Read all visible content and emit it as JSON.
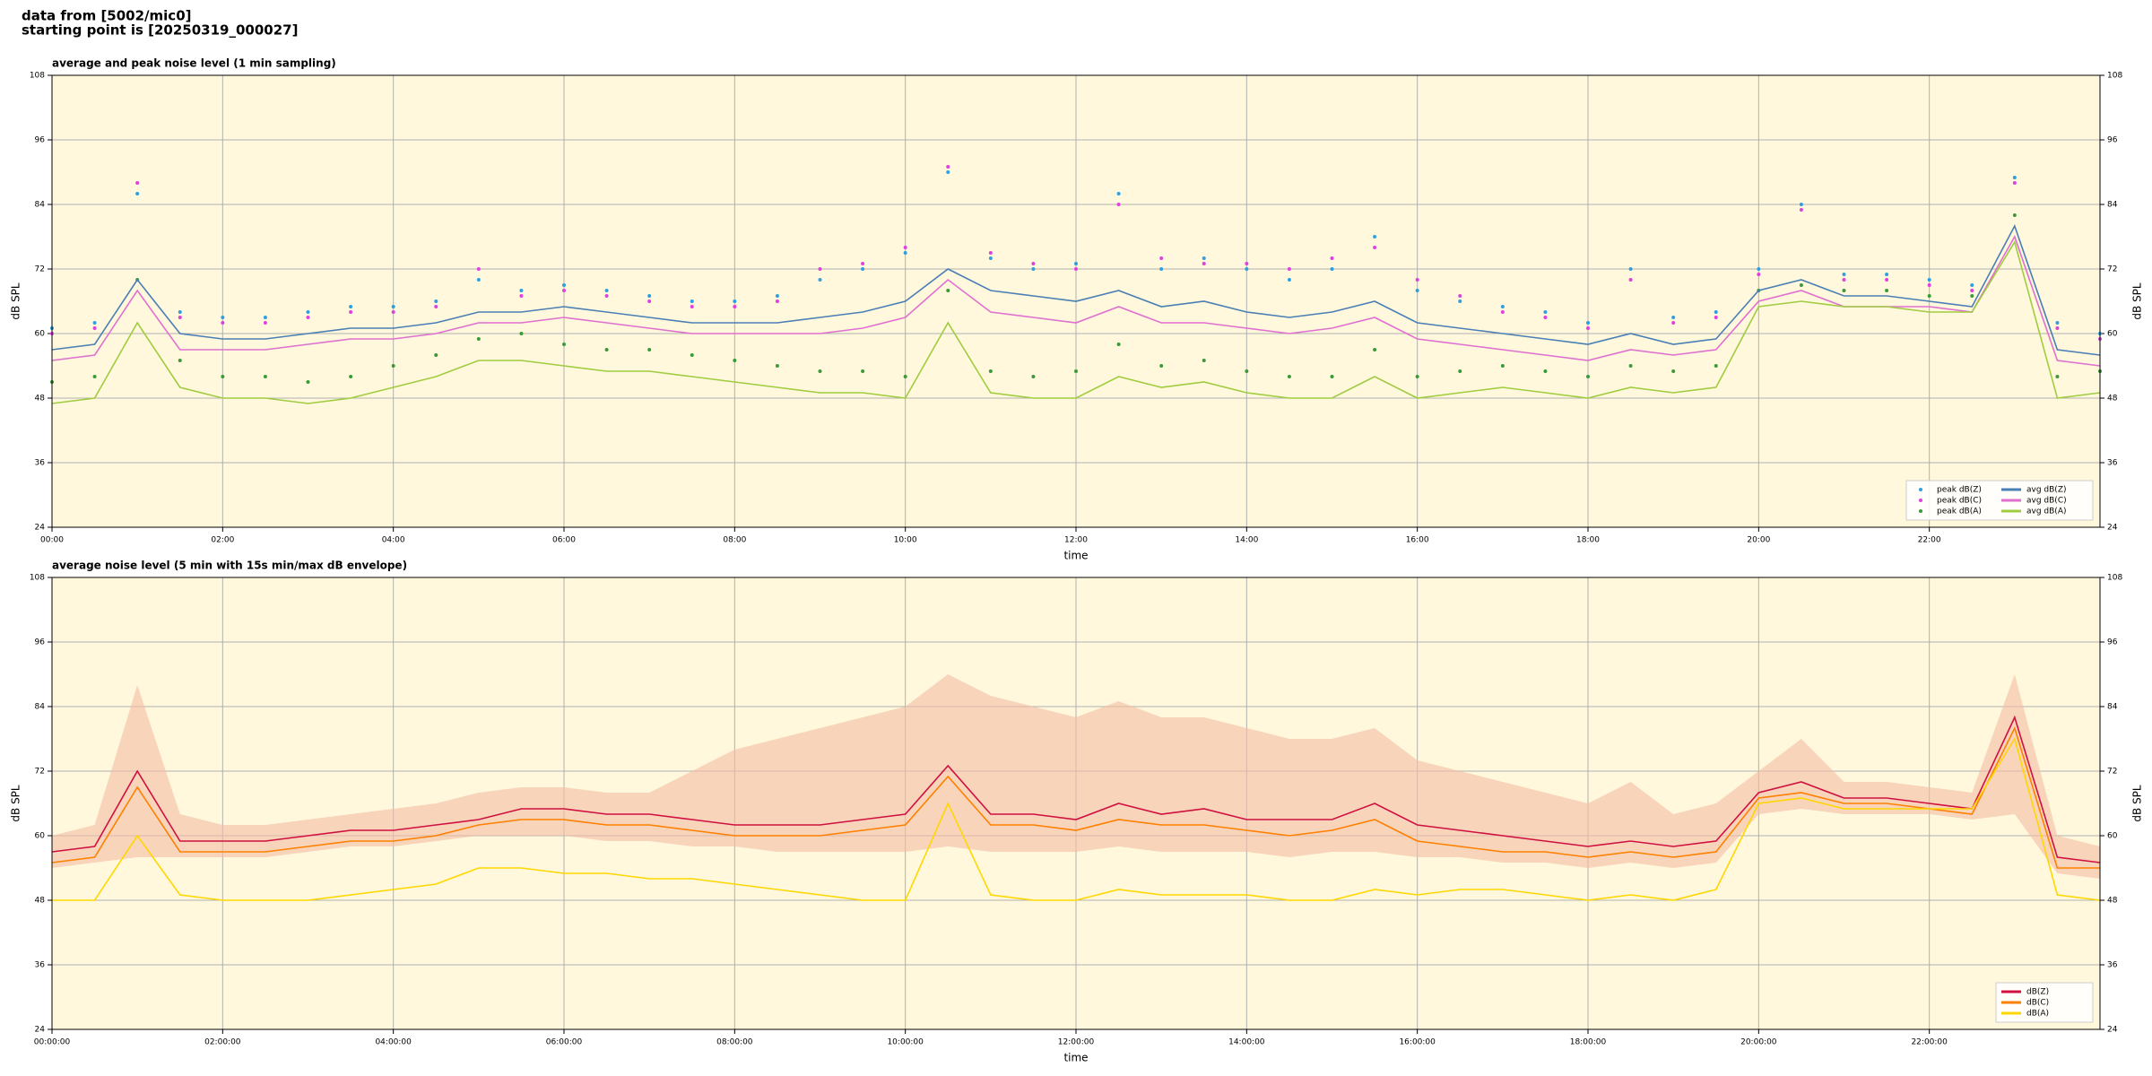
{
  "header": {
    "line1": "data from [5002/mic0]",
    "line2": "starting point is [20250319_000027]"
  },
  "chart_data": [
    {
      "type": "line",
      "title": "average and peak noise level (1 min sampling)",
      "xlabel": "time",
      "ylabel": "dB SPL",
      "background": "#fff8dc",
      "grid": true,
      "legend": "lower right",
      "xlim": [
        0,
        24
      ],
      "xticks": [
        {
          "value": 0,
          "label": "00:00"
        },
        {
          "value": 2,
          "label": "02:00"
        },
        {
          "value": 4,
          "label": "04:00"
        },
        {
          "value": 6,
          "label": "06:00"
        },
        {
          "value": 8,
          "label": "08:00"
        },
        {
          "value": 10,
          "label": "10:00"
        },
        {
          "value": 12,
          "label": "12:00"
        },
        {
          "value": 14,
          "label": "14:00"
        },
        {
          "value": 16,
          "label": "16:00"
        },
        {
          "value": 18,
          "label": "18:00"
        },
        {
          "value": 20,
          "label": "20:00"
        },
        {
          "value": 22,
          "label": "22:00"
        }
      ],
      "ylim": [
        24,
        108
      ],
      "yticks": [
        24,
        36,
        48,
        60,
        72,
        84,
        96,
        108
      ],
      "x": [
        0,
        0.5,
        1,
        1.5,
        2,
        2.5,
        3,
        3.5,
        4,
        4.5,
        5,
        5.5,
        6,
        6.5,
        7,
        7.5,
        8,
        8.5,
        9,
        9.5,
        10,
        10.5,
        11,
        11.5,
        12,
        12.5,
        13,
        13.5,
        14,
        14.5,
        15,
        15.5,
        16,
        16.5,
        17,
        17.5,
        18,
        18.5,
        19,
        19.5,
        20,
        20.5,
        21,
        21.5,
        22,
        22.5,
        23,
        23.5,
        24
      ],
      "series": [
        {
          "name": "peak dB(Z)",
          "style": "markers",
          "color": "#2f9fe0",
          "values": [
            61,
            62,
            86,
            64,
            63,
            63,
            64,
            65,
            65,
            66,
            70,
            68,
            69,
            68,
            67,
            66,
            66,
            67,
            70,
            72,
            75,
            90,
            74,
            72,
            73,
            86,
            72,
            74,
            72,
            70,
            72,
            78,
            68,
            66,
            65,
            64,
            62,
            72,
            63,
            64,
            72,
            84,
            71,
            71,
            70,
            69,
            89,
            62,
            60
          ]
        },
        {
          "name": "peak dB(C)",
          "style": "markers",
          "color": "#e040e0",
          "values": [
            60,
            61,
            88,
            63,
            62,
            62,
            63,
            64,
            64,
            65,
            72,
            67,
            68,
            67,
            66,
            65,
            65,
            66,
            72,
            73,
            76,
            91,
            75,
            73,
            72,
            84,
            74,
            73,
            73,
            72,
            74,
            76,
            70,
            67,
            64,
            63,
            61,
            70,
            62,
            63,
            71,
            83,
            70,
            70,
            69,
            68,
            88,
            61,
            59
          ]
        },
        {
          "name": "peak dB(A)",
          "style": "markers",
          "color": "#3a9a3a",
          "values": [
            51,
            52,
            70,
            55,
            52,
            52,
            51,
            52,
            54,
            56,
            59,
            60,
            58,
            57,
            57,
            56,
            55,
            54,
            53,
            53,
            52,
            68,
            53,
            52,
            53,
            58,
            54,
            55,
            53,
            52,
            52,
            57,
            52,
            53,
            54,
            53,
            52,
            54,
            53,
            54,
            68,
            69,
            68,
            68,
            67,
            67,
            82,
            52,
            53
          ]
        },
        {
          "name": "avg dB(Z)",
          "style": "line",
          "color": "#4a7fb5",
          "values": [
            57,
            58,
            70,
            60,
            59,
            59,
            60,
            61,
            61,
            62,
            64,
            64,
            65,
            64,
            63,
            62,
            62,
            62,
            63,
            64,
            66,
            72,
            68,
            67,
            66,
            68,
            65,
            66,
            64,
            63,
            64,
            66,
            62,
            61,
            60,
            59,
            58,
            60,
            58,
            59,
            68,
            70,
            67,
            67,
            66,
            65,
            80,
            57,
            56
          ]
        },
        {
          "name": "avg dB(C)",
          "style": "line",
          "color": "#e070d0",
          "values": [
            55,
            56,
            68,
            57,
            57,
            57,
            58,
            59,
            59,
            60,
            62,
            62,
            63,
            62,
            61,
            60,
            60,
            60,
            60,
            61,
            63,
            70,
            64,
            63,
            62,
            65,
            62,
            62,
            61,
            60,
            61,
            63,
            59,
            58,
            57,
            56,
            55,
            57,
            56,
            57,
            66,
            68,
            65,
            65,
            65,
            64,
            78,
            55,
            54
          ]
        },
        {
          "name": "avg dB(A)",
          "style": "line",
          "color": "#a0cc40",
          "values": [
            47,
            48,
            62,
            50,
            48,
            48,
            47,
            48,
            50,
            52,
            55,
            55,
            54,
            53,
            53,
            52,
            51,
            50,
            49,
            49,
            48,
            62,
            49,
            48,
            48,
            52,
            50,
            51,
            49,
            48,
            48,
            52,
            48,
            49,
            50,
            49,
            48,
            50,
            49,
            50,
            65,
            66,
            65,
            65,
            64,
            64,
            77,
            48,
            49
          ]
        }
      ]
    },
    {
      "type": "line",
      "title": "average noise level (5 min with 15s min/max dB envelope)",
      "xlabel": "time",
      "ylabel": "dB SPL",
      "background": "#fff8dc",
      "grid": true,
      "legend": "lower right",
      "xlim": [
        0,
        24
      ],
      "xticks": [
        {
          "value": 0,
          "label": "00:00:00"
        },
        {
          "value": 2,
          "label": "02:00:00"
        },
        {
          "value": 4,
          "label": "04:00:00"
        },
        {
          "value": 6,
          "label": "06:00:00"
        },
        {
          "value": 8,
          "label": "08:00:00"
        },
        {
          "value": 10,
          "label": "10:00:00"
        },
        {
          "value": 12,
          "label": "12:00:00"
        },
        {
          "value": 14,
          "label": "14:00:00"
        },
        {
          "value": 16,
          "label": "16:00:00"
        },
        {
          "value": 18,
          "label": "18:00:00"
        },
        {
          "value": 20,
          "label": "20:00:00"
        },
        {
          "value": 22,
          "label": "22:00:00"
        }
      ],
      "ylim": [
        24,
        108
      ],
      "yticks": [
        24,
        36,
        48,
        60,
        72,
        84,
        96,
        108
      ],
      "x": [
        0,
        0.5,
        1,
        1.5,
        2,
        2.5,
        3,
        3.5,
        4,
        4.5,
        5,
        5.5,
        6,
        6.5,
        7,
        7.5,
        8,
        8.5,
        9,
        9.5,
        10,
        10.5,
        11,
        11.5,
        12,
        12.5,
        13,
        13.5,
        14,
        14.5,
        15,
        15.5,
        16,
        16.5,
        17,
        17.5,
        18,
        18.5,
        19,
        19.5,
        20,
        20.5,
        21,
        21.5,
        22,
        22.5,
        23,
        23.5,
        24
      ],
      "envelope": {
        "color": "#f4bca4",
        "low": [
          54,
          55,
          56,
          56,
          56,
          56,
          57,
          58,
          58,
          59,
          60,
          60,
          60,
          59,
          59,
          58,
          58,
          57,
          57,
          57,
          57,
          58,
          57,
          57,
          57,
          58,
          57,
          57,
          57,
          56,
          57,
          57,
          56,
          56,
          55,
          55,
          54,
          55,
          54,
          55,
          64,
          65,
          64,
          64,
          64,
          63,
          64,
          53,
          52
        ],
        "high": [
          60,
          62,
          88,
          64,
          62,
          62,
          63,
          64,
          65,
          66,
          68,
          69,
          69,
          68,
          68,
          72,
          76,
          78,
          80,
          82,
          84,
          90,
          86,
          84,
          82,
          85,
          82,
          82,
          80,
          78,
          78,
          80,
          74,
          72,
          70,
          68,
          66,
          70,
          64,
          66,
          72,
          78,
          70,
          70,
          69,
          68,
          90,
          60,
          58
        ]
      },
      "series": [
        {
          "name": "dB(Z)",
          "style": "line",
          "color": "#d01040",
          "values": [
            57,
            58,
            72,
            59,
            59,
            59,
            60,
            61,
            61,
            62,
            63,
            65,
            65,
            64,
            64,
            63,
            62,
            62,
            62,
            63,
            64,
            73,
            64,
            64,
            63,
            66,
            64,
            65,
            63,
            63,
            63,
            66,
            62,
            61,
            60,
            59,
            58,
            59,
            58,
            59,
            68,
            70,
            67,
            67,
            66,
            65,
            82,
            56,
            55
          ]
        },
        {
          "name": "dB(C)",
          "style": "line",
          "color": "#ff8000",
          "values": [
            55,
            56,
            69,
            57,
            57,
            57,
            58,
            59,
            59,
            60,
            62,
            63,
            63,
            62,
            62,
            61,
            60,
            60,
            60,
            61,
            62,
            71,
            62,
            62,
            61,
            63,
            62,
            62,
            61,
            60,
            61,
            63,
            59,
            58,
            57,
            57,
            56,
            57,
            56,
            57,
            67,
            68,
            66,
            66,
            65,
            64,
            80,
            54,
            54
          ]
        },
        {
          "name": "dB(A)",
          "style": "line",
          "color": "#ffd700",
          "values": [
            48,
            48,
            60,
            49,
            48,
            48,
            48,
            49,
            50,
            51,
            54,
            54,
            53,
            53,
            52,
            52,
            51,
            50,
            49,
            48,
            48,
            66,
            49,
            48,
            48,
            50,
            49,
            49,
            49,
            48,
            48,
            50,
            49,
            50,
            50,
            49,
            48,
            49,
            48,
            50,
            66,
            67,
            65,
            65,
            65,
            65,
            78,
            49,
            48
          ]
        }
      ]
    }
  ]
}
